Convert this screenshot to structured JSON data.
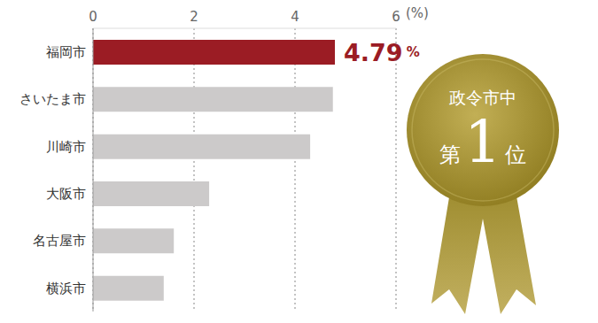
{
  "chart_data": {
    "type": "bar",
    "orientation": "horizontal",
    "categories": [
      "福岡市",
      "さいたま市",
      "川崎市",
      "大阪市",
      "名古屋市",
      "横浜市"
    ],
    "values": [
      4.79,
      4.75,
      4.3,
      2.3,
      1.6,
      1.4
    ],
    "colors": [
      "#9b1c24",
      "#cccaca",
      "#cccaca",
      "#cccaca",
      "#cccaca",
      "#cccaca"
    ],
    "xlim": [
      0,
      6
    ],
    "xticks": [
      0,
      2,
      4,
      6
    ],
    "xlabel": "(%)",
    "grid": true,
    "data_labels": true,
    "value_labels": [
      "4.79%",
      null,
      null,
      null,
      null,
      null
    ],
    "annotations": [
      "政令市中",
      "第1位"
    ]
  }
}
